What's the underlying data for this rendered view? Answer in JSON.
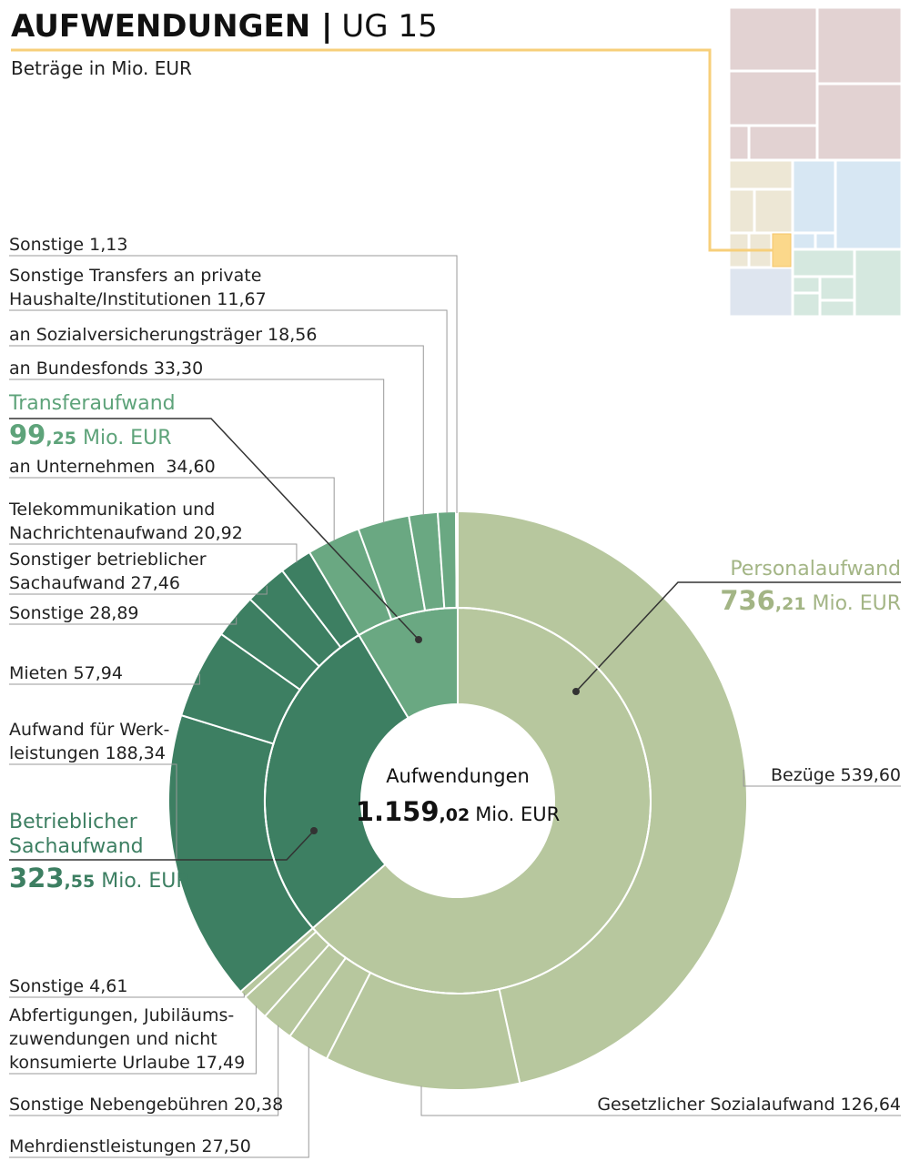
{
  "chart_data": {
    "type": "sunburst",
    "title": "AUFWENDUNGEN |",
    "title_suffix": "UG 15",
    "subtitle": "Beträge in Mio. EUR",
    "center_label": "Aufwendungen",
    "total": 1159.02,
    "total_label": "1.159,02",
    "unit": "Mio. EUR",
    "categories": [
      [
        "Personalaufwand"
      ],
      [
        "Betrieblicher",
        "Sachaufwand"
      ],
      [
        "Transferaufwand"
      ]
    ],
    "values": [
      736.21,
      323.55,
      99.25
    ],
    "value_labels": [
      "736,21",
      "323,55",
      "99,25"
    ],
    "colors": [
      "#b7c79e",
      "#3d7f62",
      "#6aa882"
    ],
    "label_colors": [
      "#a3b585",
      "#3d7f62",
      "#5ea37a"
    ],
    "children": [
      {
        "names": [
          [
            "Bezüge"
          ],
          [
            "Gesetzlicher Sozialaufwand"
          ],
          [
            "Mehrdienstleistungen"
          ],
          [
            "Sonstige Nebengebühren"
          ],
          [
            "Abfertigungen, Jubiläums-",
            "zuwendungen und nicht",
            "konsumierte Urlaube"
          ],
          [
            "Sonstige"
          ]
        ],
        "values": [
          539.6,
          126.64,
          27.5,
          20.38,
          17.49,
          4.61
        ],
        "value_labels": [
          "539,60",
          "126,64",
          "27,50",
          "20,38",
          "17,49",
          "4,61"
        ]
      },
      {
        "names": [
          [
            "Aufwand für Werk-",
            "leistungen"
          ],
          [
            "Mieten"
          ],
          [
            "Sonstige"
          ],
          [
            "Sonstiger betrieblicher",
            "Sachaufwand"
          ],
          [
            "Telekommunikation und",
            "Nachrichtenaufwand"
          ]
        ],
        "values": [
          188.34,
          57.94,
          28.89,
          27.46,
          20.92
        ],
        "value_labels": [
          "188,34",
          "57,94",
          "28,89",
          "27,46",
          "20,92"
        ]
      },
      {
        "names": [
          [
            "an Unternehmen "
          ],
          [
            "an Bundesfonds"
          ],
          [
            "an Sozialversicherungsträger"
          ],
          [
            "Sonstige Transfers an private",
            "Haushalte/Institutionen"
          ],
          [
            "Sonstige"
          ]
        ],
        "values": [
          34.6,
          33.3,
          18.56,
          11.67,
          1.13
        ],
        "value_labels": [
          "34,60",
          "33,30",
          "18,56",
          "11,67",
          "1,13"
        ]
      }
    ]
  }
}
